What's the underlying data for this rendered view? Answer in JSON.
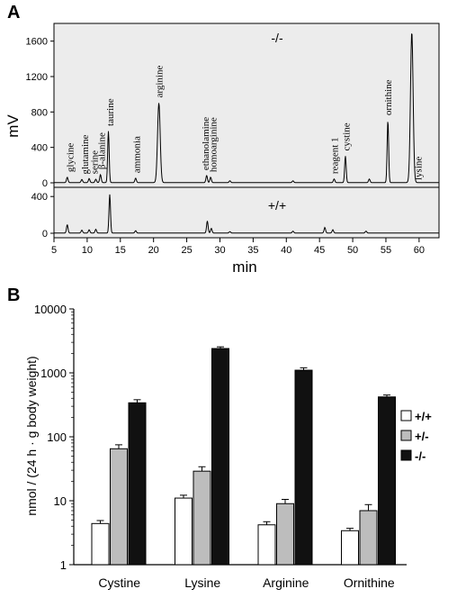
{
  "panel_a": {
    "letter": "A",
    "ylabel": "mV",
    "xlabel": "min",
    "top_trace_label": "-/-",
    "bottom_trace_label": "+/+"
  },
  "panel_b": {
    "letter": "B",
    "ylabel": "nmol / (24 h · g body weight)"
  },
  "chart_data": [
    {
      "type": "line",
      "panel": "A",
      "xlabel": "min",
      "ylabel": "mV",
      "xlim": [
        5,
        63
      ],
      "xticks": [
        5,
        10,
        15,
        20,
        25,
        30,
        35,
        40,
        45,
        50,
        55,
        60
      ],
      "subplots": [
        {
          "name": "-/-",
          "ylim": [
            0,
            1800
          ],
          "yticks": [
            0,
            400,
            800,
            1200,
            1600
          ],
          "background": "#ececec",
          "peaks": [
            {
              "x": 7.0,
              "y": 60
            },
            {
              "x": 9.2,
              "y": 35
            },
            {
              "x": 10.3,
              "y": 45
            },
            {
              "x": 11.3,
              "y": 38
            },
            {
              "x": 12.0,
              "y": 90
            },
            {
              "x": 13.2,
              "y": 580
            },
            {
              "x": 17.3,
              "y": 50
            },
            {
              "x": 20.8,
              "y": 900
            },
            {
              "x": 28.0,
              "y": 80
            },
            {
              "x": 28.6,
              "y": 60
            },
            {
              "x": 31.5,
              "y": 20
            },
            {
              "x": 41.0,
              "y": 20
            },
            {
              "x": 47.2,
              "y": 40
            },
            {
              "x": 48.9,
              "y": 300
            },
            {
              "x": 52.5,
              "y": 40
            },
            {
              "x": 55.3,
              "y": 700
            },
            {
              "x": 58.9,
              "y": 1700
            }
          ],
          "peak_labels": [
            {
              "text": "glycine",
              "x": 7.4
            },
            {
              "text": "glutamine",
              "x": 9.6
            },
            {
              "text": "serine",
              "x": 11.0
            },
            {
              "text": "β-alanine",
              "x": 12.1
            },
            {
              "text": "taurine",
              "x": 13.4
            },
            {
              "text": "ammonia",
              "x": 17.4
            },
            {
              "text": "arginine",
              "x": 20.8
            },
            {
              "text": "ethanolamine",
              "x": 27.8
            },
            {
              "text": "homoarginine",
              "x": 28.9
            },
            {
              "text": "reagent 1",
              "x": 47.2
            },
            {
              "text": "cystine",
              "x": 49.0
            },
            {
              "text": "ornithine",
              "x": 55.3
            },
            {
              "text": "lysine",
              "x": 59.8
            }
          ]
        },
        {
          "name": "+/+",
          "ylim": [
            0,
            500
          ],
          "yticks": [
            0,
            400
          ],
          "background": "#ececec",
          "peaks": [
            {
              "x": 7.0,
              "y": 90
            },
            {
              "x": 9.2,
              "y": 30
            },
            {
              "x": 10.3,
              "y": 35
            },
            {
              "x": 11.3,
              "y": 40
            },
            {
              "x": 13.4,
              "y": 420
            },
            {
              "x": 17.3,
              "y": 25
            },
            {
              "x": 28.1,
              "y": 130
            },
            {
              "x": 28.7,
              "y": 50
            },
            {
              "x": 31.5,
              "y": 15
            },
            {
              "x": 41.0,
              "y": 20
            },
            {
              "x": 45.8,
              "y": 60
            },
            {
              "x": 47.0,
              "y": 35
            },
            {
              "x": 52.0,
              "y": 20
            }
          ]
        }
      ]
    },
    {
      "type": "bar",
      "panel": "B",
      "ylabel": "nmol / (24 h · g body weight)",
      "yscale": "log",
      "ylim": [
        1,
        10000
      ],
      "yticks": [
        "1",
        "10",
        "100",
        "1000",
        "10000"
      ],
      "categories": [
        "Cystine",
        "Lysine",
        "Arginine",
        "Ornithine"
      ],
      "series": [
        {
          "name": "+/+",
          "color": "#ffffff",
          "values": [
            4.4,
            11,
            4.2,
            3.4
          ],
          "errors": [
            0.5,
            1.2,
            0.5,
            0.3
          ]
        },
        {
          "name": "+/-",
          "color": "#bdbdbd",
          "values": [
            65,
            29,
            9,
            7
          ],
          "errors": [
            10,
            5,
            1.5,
            1.7
          ]
        },
        {
          "name": "-/-",
          "color": "#111111",
          "values": [
            340,
            2400,
            1100,
            420
          ],
          "errors": [
            40,
            150,
            100,
            30
          ]
        }
      ],
      "legend_position": "right"
    }
  ]
}
